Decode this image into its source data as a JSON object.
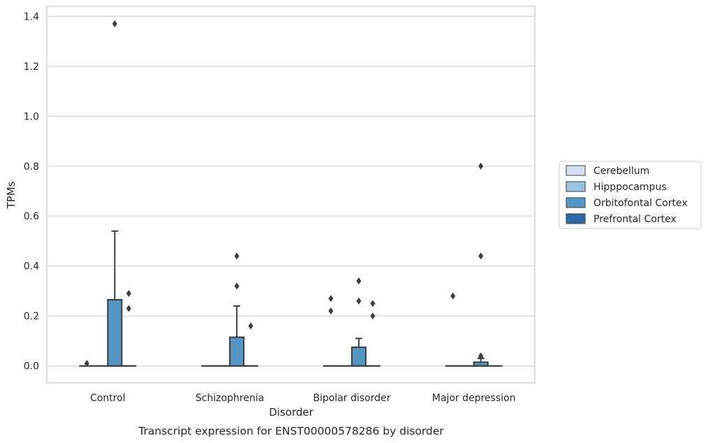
{
  "chart_data": {
    "type": "box",
    "caption": "Transcript expression for ENST00000578286 by disorder",
    "xlabel": "Disorder",
    "ylabel": "TPMs",
    "ylim": [
      -0.068,
      1.44
    ],
    "yticks": [
      0.0,
      0.2,
      0.4,
      0.6,
      0.8,
      1.0,
      1.2,
      1.4
    ],
    "ytick_labels": [
      "0.0",
      "0.2",
      "0.4",
      "0.6",
      "0.8",
      "1.0",
      "1.2",
      "1.4"
    ],
    "grid": true,
    "legend_position": "right",
    "categories": [
      "Control",
      "Schizophrenia",
      "Bipolar disorder",
      "Major depression"
    ],
    "series": [
      {
        "name": "Cerebellum",
        "color": "#d1e1f0",
        "boxes": [
          {
            "q1": 0,
            "median": 0,
            "q3": 0,
            "whisker_low": 0,
            "whisker_high": 0,
            "outliers": [
              0.01
            ]
          },
          {
            "q1": 0,
            "median": 0,
            "q3": 0,
            "whisker_low": 0,
            "whisker_high": 0,
            "outliers": []
          },
          {
            "q1": 0,
            "median": 0,
            "q3": 0,
            "whisker_low": 0,
            "whisker_high": 0,
            "outliers": [
              0.27,
              0.22
            ]
          },
          {
            "q1": 0,
            "median": 0,
            "q3": 0,
            "whisker_low": 0,
            "whisker_high": 0,
            "outliers": [
              0.28
            ]
          }
        ]
      },
      {
        "name": "Hipppocampus",
        "color": "#9ac5de",
        "boxes": [
          {
            "q1": 0,
            "median": 0,
            "q3": 0,
            "whisker_low": 0,
            "whisker_high": 0,
            "outliers": []
          },
          {
            "q1": 0,
            "median": 0,
            "q3": 0,
            "whisker_low": 0,
            "whisker_high": 0,
            "outliers": []
          },
          {
            "q1": 0,
            "median": 0,
            "q3": 0,
            "whisker_low": 0,
            "whisker_high": 0,
            "outliers": []
          },
          {
            "q1": 0,
            "median": 0,
            "q3": 0,
            "whisker_low": 0,
            "whisker_high": 0,
            "outliers": []
          }
        ]
      },
      {
        "name": "Orbitofontal Cortex",
        "color": "#5496c4",
        "boxes": [
          {
            "q1": 0,
            "median": 0,
            "q3": 0.265,
            "whisker_low": 0,
            "whisker_high": 0.54,
            "outliers": [
              1.37
            ]
          },
          {
            "q1": 0,
            "median": 0,
            "q3": 0.115,
            "whisker_low": 0,
            "whisker_high": 0.24,
            "outliers": [
              0.44,
              0.32
            ]
          },
          {
            "q1": 0,
            "median": 0,
            "q3": 0.075,
            "whisker_low": 0,
            "whisker_high": 0.11,
            "outliers": [
              0.34,
              0.26
            ]
          },
          {
            "q1": 0,
            "median": 0,
            "q3": 0.015,
            "whisker_low": 0,
            "whisker_high": 0.03,
            "outliers": [
              0.8,
              0.44,
              0.04,
              0.035
            ]
          }
        ]
      },
      {
        "name": "Prefrontal Cortex",
        "color": "#2e6aa8",
        "boxes": [
          {
            "q1": 0,
            "median": 0,
            "q3": 0,
            "whisker_low": 0,
            "whisker_high": 0,
            "outliers": [
              0.29,
              0.23
            ]
          },
          {
            "q1": 0,
            "median": 0,
            "q3": 0,
            "whisker_low": 0,
            "whisker_high": 0,
            "outliers": [
              0.16
            ]
          },
          {
            "q1": 0,
            "median": 0,
            "q3": 0,
            "whisker_low": 0,
            "whisker_high": 0,
            "outliers": [
              0.25,
              0.2
            ]
          },
          {
            "q1": 0,
            "median": 0,
            "q3": 0,
            "whisker_low": 0,
            "whisker_high": 0,
            "outliers": []
          }
        ]
      }
    ]
  }
}
